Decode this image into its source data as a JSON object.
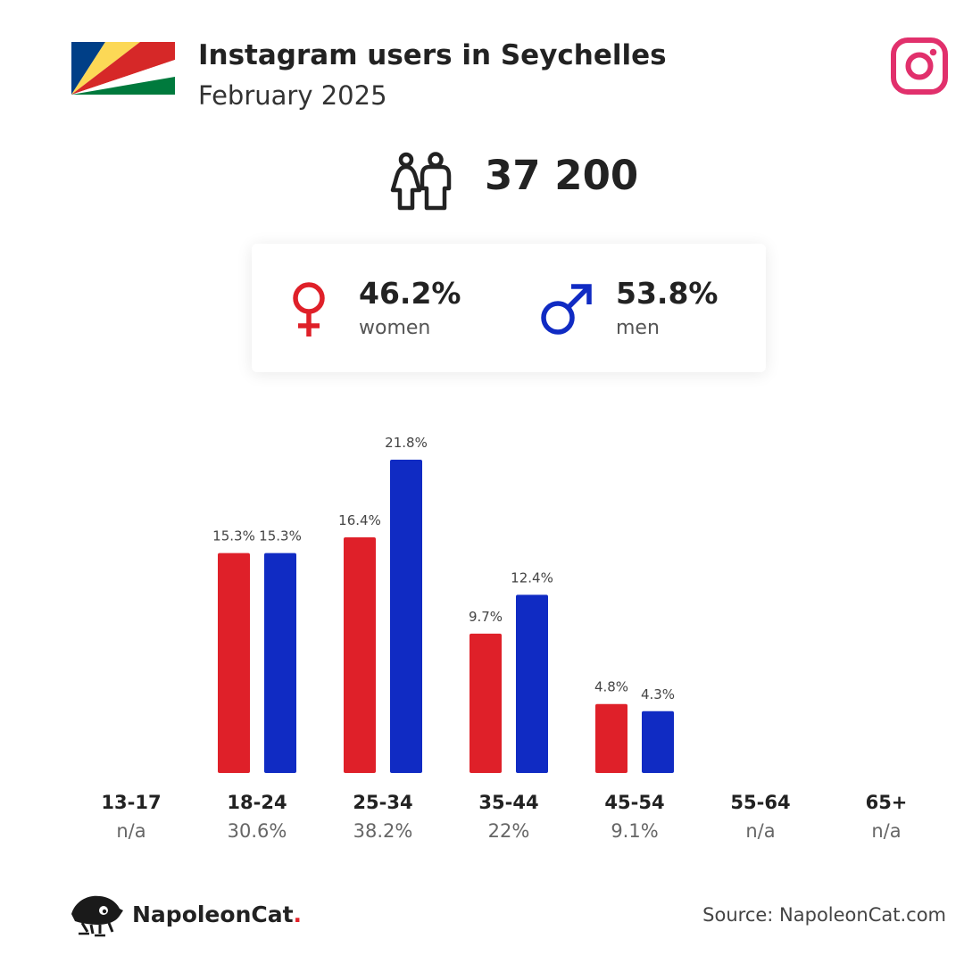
{
  "header": {
    "title": "Instagram users in Seychelles",
    "subtitle": "February 2025"
  },
  "summary": {
    "total_users": "37 200"
  },
  "gender": {
    "women": {
      "value": "46.2%",
      "label": "women"
    },
    "men": {
      "value": "53.8%",
      "label": "men"
    }
  },
  "footer": {
    "brand": "NapoleonCat",
    "brand_dot": ".",
    "source": "Source: NapoleonCat.com"
  },
  "colors": {
    "women": "#df2029",
    "men": "#102bc3",
    "instagram": "#e1306c"
  },
  "icons": {
    "flag": "seychelles-flag-icon",
    "instagram": "instagram-icon",
    "people": "people-icon",
    "female": "female-symbol-icon",
    "male": "male-symbol-icon",
    "brand": "napoleoncat-logo-icon"
  },
  "chart_data": {
    "type": "bar",
    "categories": [
      "13-17",
      "18-24",
      "25-34",
      "35-44",
      "45-54",
      "55-64",
      "65+"
    ],
    "category_totals": [
      "n/a",
      "30.6%",
      "38.2%",
      "22%",
      "9.1%",
      "n/a",
      "n/a"
    ],
    "series": [
      {
        "key": "women",
        "values": [
          null,
          15.3,
          16.4,
          9.7,
          4.8,
          null,
          null
        ],
        "labels": [
          "",
          "15.3%",
          "16.4%",
          "9.7%",
          "4.8%",
          "",
          ""
        ]
      },
      {
        "key": "men",
        "values": [
          null,
          15.3,
          21.8,
          12.4,
          4.3,
          null,
          null
        ],
        "labels": [
          "",
          "15.3%",
          "21.8%",
          "12.4%",
          "4.3%",
          "",
          ""
        ]
      }
    ],
    "ylim": [
      0,
      21.8
    ],
    "grid": false,
    "legend": "none"
  }
}
